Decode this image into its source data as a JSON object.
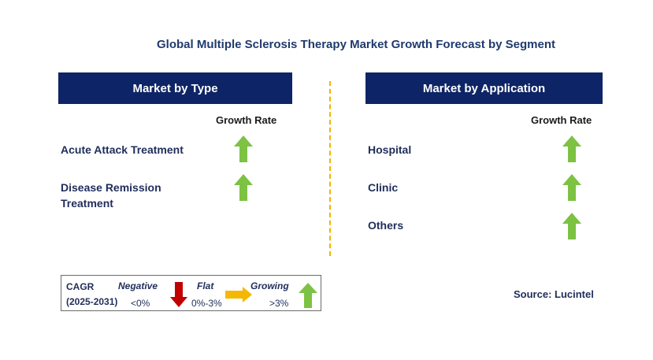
{
  "title": "Global Multiple Sclerosis Therapy Market Growth Forecast by Segment",
  "left_panel": {
    "header": "Market by Type",
    "growth_rate_label": "Growth Rate",
    "rows": [
      {
        "label_line1": "Acute Attack Treatment",
        "label_line2": "",
        "trend": "growing"
      },
      {
        "label_line1": "Disease Remission",
        "label_line2": "Treatment",
        "trend": "growing"
      }
    ]
  },
  "right_panel": {
    "header": "Market by Application",
    "growth_rate_label": "Growth Rate",
    "rows": [
      {
        "label": "Hospital",
        "trend": "growing"
      },
      {
        "label": "Clinic",
        "trend": "growing"
      },
      {
        "label": "Others",
        "trend": "growing"
      }
    ]
  },
  "legend": {
    "cagr_label": "CAGR",
    "period": "(2025-2031)",
    "negative_label": "Negative",
    "negative_range": "<0%",
    "flat_label": "Flat",
    "flat_range": "0%-3%",
    "growing_label": "Growing",
    "growing_range": ">3%"
  },
  "source": "Source: Lucintel",
  "colors": {
    "header_bg": "#0d2466",
    "growing_arrow": "#7dc243",
    "negative_arrow": "#c00000",
    "flat_arrow": "#f5b800",
    "divider": "#f2b400"
  },
  "icons": {
    "growing": "green-up-arrow-icon",
    "negative": "red-down-arrow-icon",
    "flat": "yellow-right-arrow-icon"
  }
}
